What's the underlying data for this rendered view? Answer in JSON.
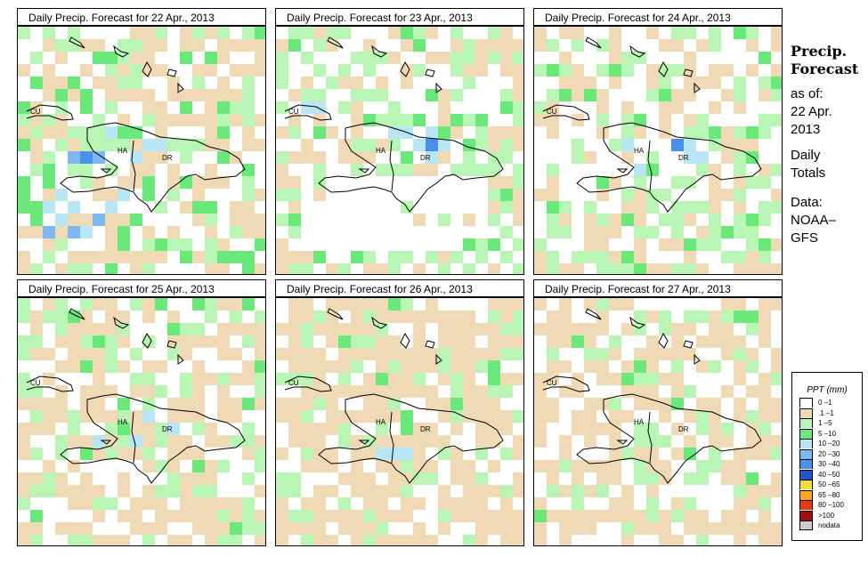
{
  "panels": [
    {
      "title": "Daily Precip. Forecast for  22 Apr., 2013"
    },
    {
      "title": "Daily Precip. Forecast for  23 Apr., 2013"
    },
    {
      "title": "Daily Precip. Forecast for  24 Apr., 2013"
    },
    {
      "title": "Daily Precip. Forecast for  25 Apr., 2013"
    },
    {
      "title": "Daily Precip. Forecast for  26 Apr., 2013"
    },
    {
      "title": "Daily Precip. Forecast for  27 Apr., 2013"
    }
  ],
  "map_labels": {
    "cuba": "CU",
    "haiti": "HA",
    "dominican_republic": "DR"
  },
  "sidebar": {
    "title_line1": "Precip.",
    "title_line2": "Forecast",
    "asof_line1": "as of:",
    "asof_line2": "22 Apr.",
    "asof_line3": "2013",
    "totals_line1": "Daily",
    "totals_line2": "Totals",
    "source_line1": "Data:",
    "source_line2": "NOAA–",
    "source_line3": "GFS"
  },
  "legend": {
    "title": "PPT (mm)",
    "items": [
      {
        "label": "0 –1",
        "color": "#ffffff"
      },
      {
        "label": ".1 –1",
        "color": "#f0d9b5"
      },
      {
        "label": "1 –5",
        "color": "#b9f5b4"
      },
      {
        "label": "5 –10",
        "color": "#6be87a"
      },
      {
        "label": "10 –20",
        "color": "#b8e6f5"
      },
      {
        "label": "20 –30",
        "color": "#7fb8f0"
      },
      {
        "label": "30 –40",
        "color": "#4a90e8"
      },
      {
        "label": "40 –50",
        "color": "#2255cc"
      },
      {
        "label": "50 –65",
        "color": "#f7dc40"
      },
      {
        "label": "65 –80",
        "color": "#f5a623"
      },
      {
        "label": "80 –100",
        "color": "#e63c0f"
      },
      {
        "label": ">100",
        "color": "#a01010"
      },
      {
        "label": "nodata",
        "color": "#cccccc"
      }
    ]
  }
}
